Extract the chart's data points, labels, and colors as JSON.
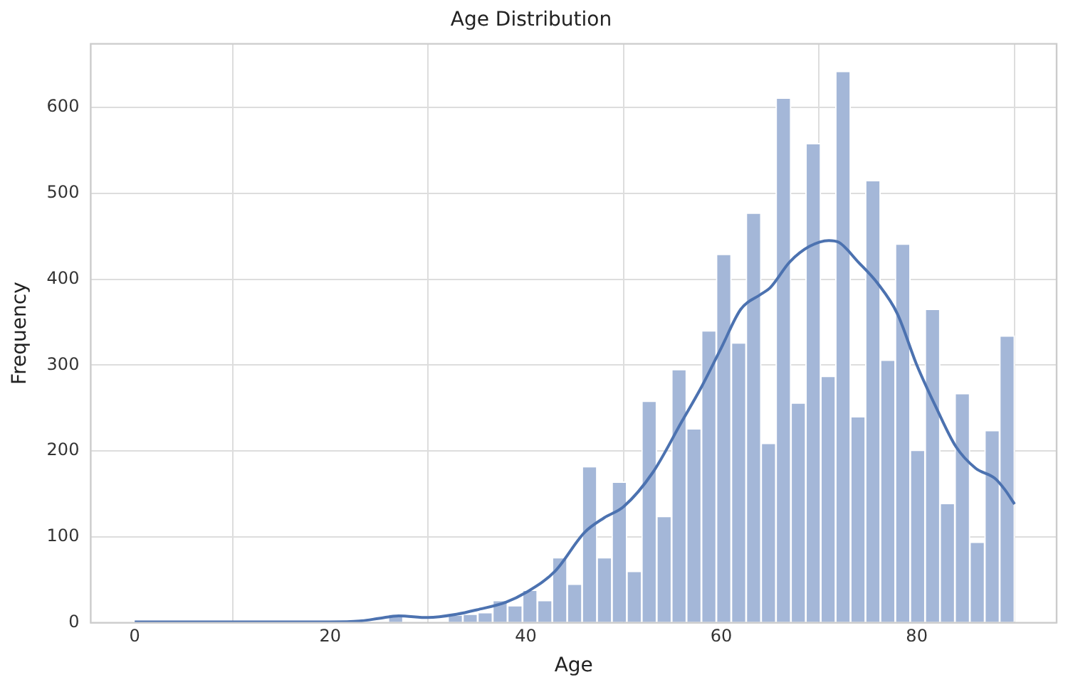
{
  "chart_data": {
    "type": "histogram",
    "title": "Age Distribution",
    "xlabel": "Age",
    "ylabel": "Frequency",
    "bins": [
      0,
      1.53,
      3.05,
      4.58,
      6.1,
      7.63,
      9.15,
      10.68,
      12.2,
      13.73,
      15.25,
      16.78,
      18.31,
      19.83,
      21.36,
      22.88,
      24.41,
      25.93,
      27.46,
      28.98,
      30.51,
      32.03,
      33.56,
      35.08,
      36.61,
      38.14,
      39.66,
      41.19,
      42.71,
      44.24,
      45.76,
      47.29,
      48.81,
      50.34,
      51.86,
      53.39,
      54.92,
      56.44,
      57.97,
      59.49,
      61.02,
      62.54,
      64.07,
      65.59,
      67.12,
      68.64,
      70.17,
      71.69,
      73.22,
      74.75,
      76.27,
      77.8,
      79.32,
      80.85,
      82.37,
      83.9,
      85.42,
      86.95,
      88.47,
      90
    ],
    "values": [
      0,
      0,
      0,
      0,
      0,
      0,
      0,
      0,
      0,
      0,
      0,
      0,
      0,
      0,
      0,
      0,
      0,
      10,
      0,
      0,
      null,
      9,
      10,
      12,
      26,
      20,
      38,
      26,
      76,
      45,
      182,
      76,
      164,
      60,
      258,
      124,
      295,
      226,
      340,
      429,
      326,
      477,
      209,
      611,
      256,
      558,
      287,
      642,
      240,
      515,
      306,
      441,
      201,
      365,
      139,
      267,
      94,
      224,
      334
    ],
    "color": "#a4b7d8",
    "series": [
      {
        "type": "line",
        "color": "#4c72b0",
        "x": [
          0,
          10,
          20,
          23,
          25,
          27,
          30,
          33,
          35,
          38,
          40,
          43,
          46,
          48,
          50,
          53,
          56,
          58,
          60,
          62,
          64,
          65,
          67,
          69,
          71,
          72,
          74,
          76,
          78,
          80,
          82,
          84,
          86,
          88,
          89,
          90
        ],
        "values": [
          1,
          1,
          1,
          2,
          5,
          8,
          6,
          10,
          15,
          24,
          35,
          60,
          105,
          122,
          135,
          175,
          235,
          275,
          320,
          365,
          382,
          390,
          420,
          438,
          445,
          443,
          420,
          395,
          360,
          300,
          250,
          205,
          180,
          168,
          155,
          138
        ]
      }
    ],
    "xlim": [
      -4.5,
      94.3
    ],
    "xticks": [
      0,
      20,
      40,
      60,
      80
    ],
    "ylim": [
      0,
      674
    ],
    "yticks": [
      0,
      100,
      200,
      300,
      400,
      500,
      600
    ],
    "grid": true,
    "legend": false,
    "marker": "none"
  }
}
